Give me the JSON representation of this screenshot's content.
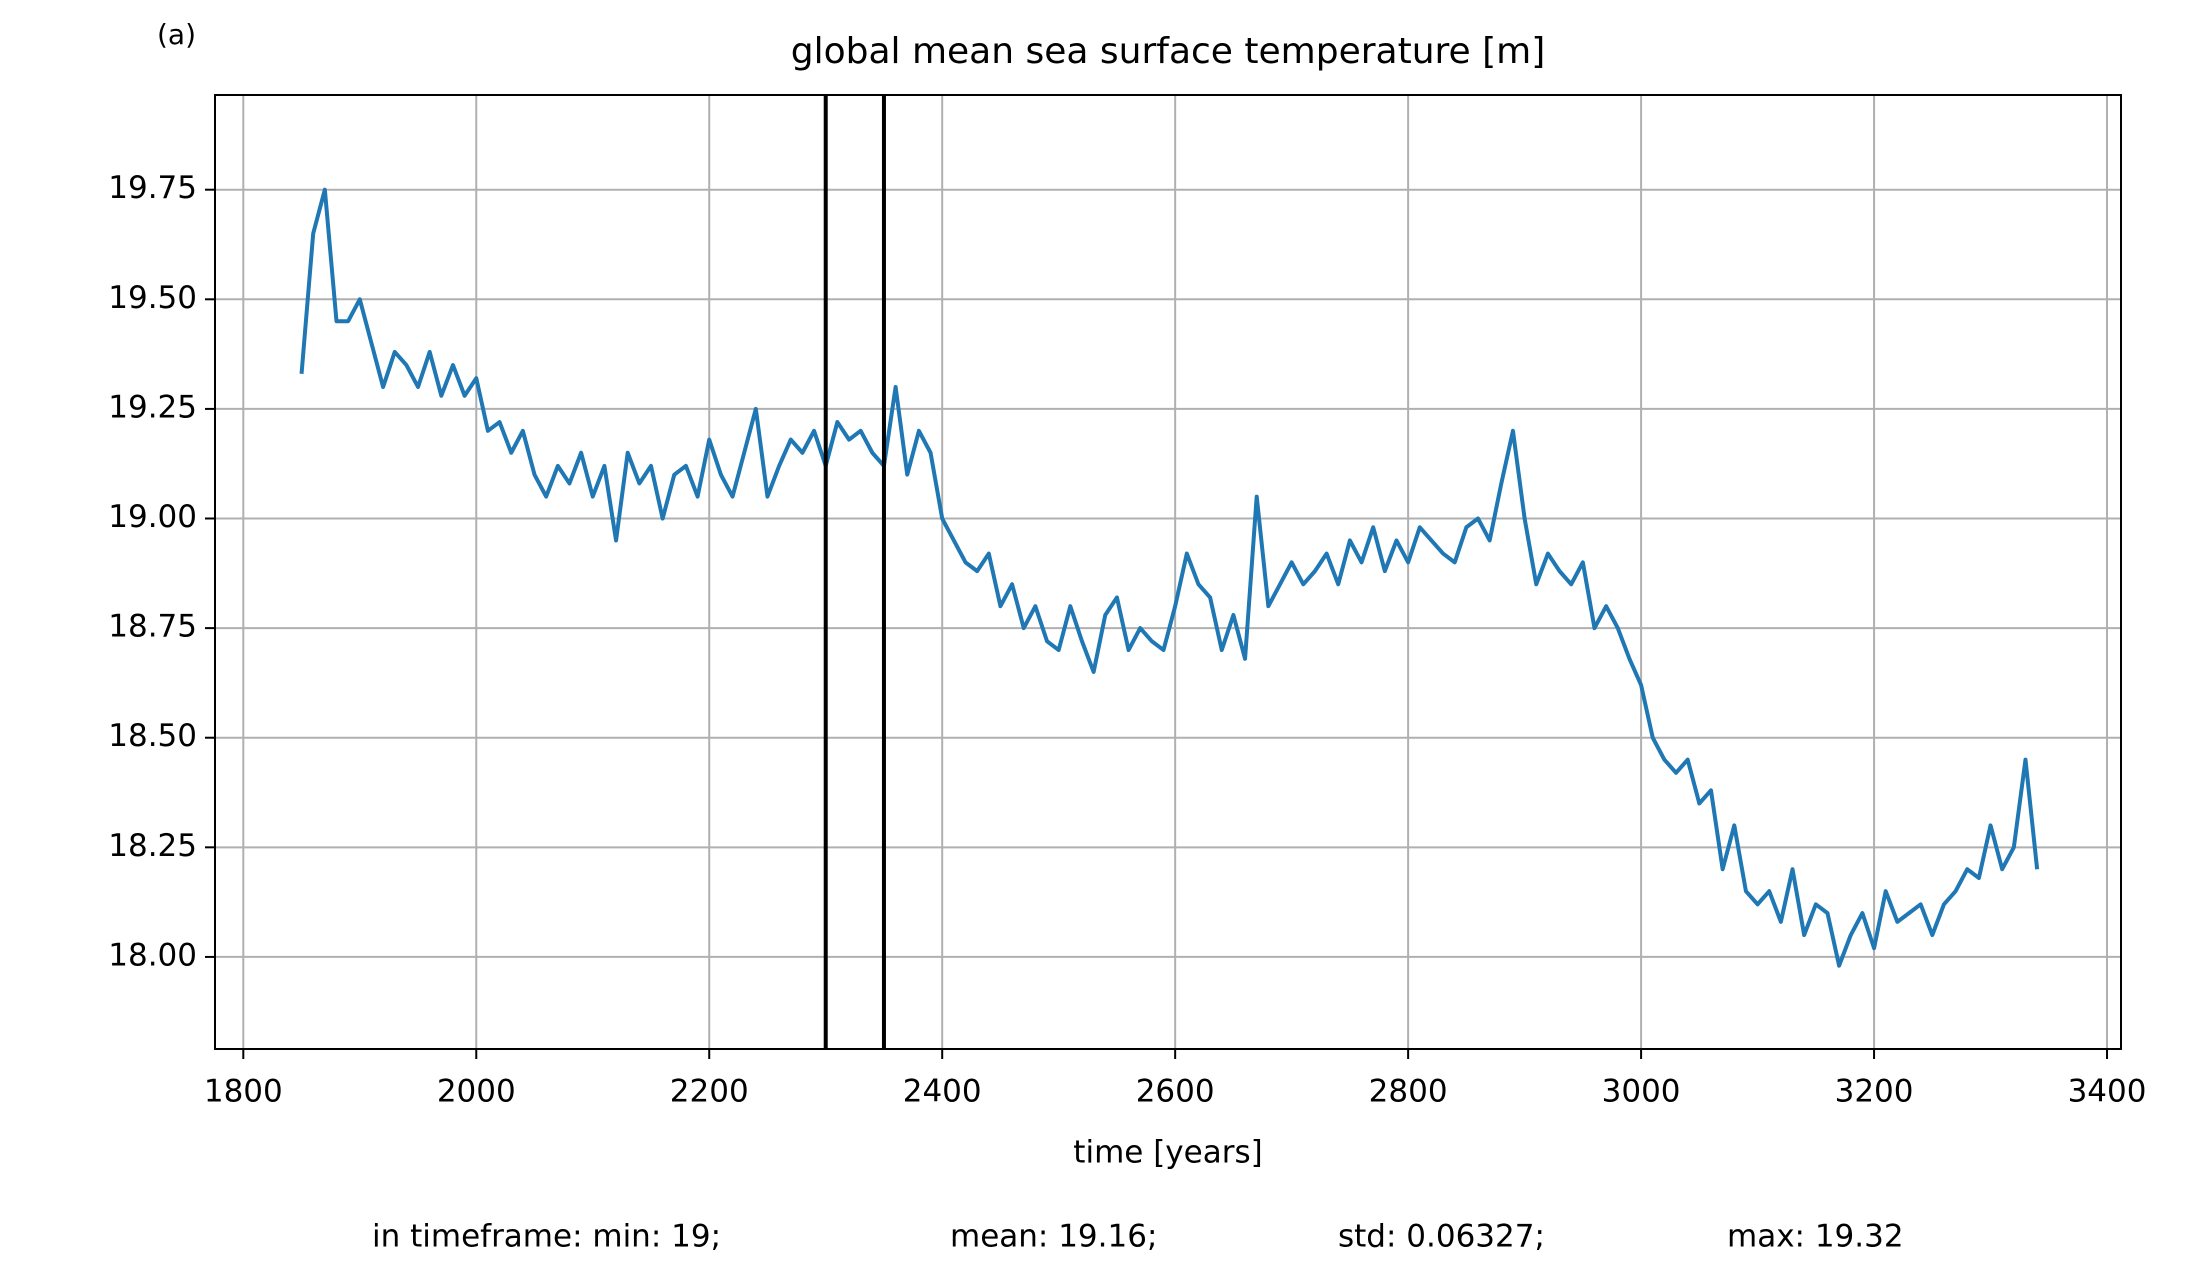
{
  "chart_data": {
    "type": "line",
    "panel_label": "(a)",
    "title": "global mean sea surface temperature [m]",
    "x_label": "time [years]",
    "annotations": [
      "in timeframe: min: 19;",
      "mean: 19.16;",
      "std: 0.06327;",
      "max: 19.32"
    ],
    "vlines": [
      2300,
      2350
    ],
    "xlim": [
      1775.7,
      3412
    ],
    "ylim": [
      17.79,
      19.966
    ],
    "xticks": [
      1800,
      2000,
      2200,
      2400,
      2600,
      2800,
      3000,
      3200,
      3400
    ],
    "yticks": [
      {
        "value": 18,
        "label": "18.00"
      },
      18.25,
      {
        "value": 18.5,
        "label": "18.50"
      },
      18.75,
      {
        "value": 19,
        "label": "19.00"
      },
      19.25,
      {
        "value": 19.5,
        "label": "19.50"
      },
      19.75
    ],
    "grid": true,
    "x": [
      1850,
      1860,
      1870,
      1880,
      1890,
      1900,
      1910,
      1920,
      1930,
      1940,
      1950,
      1960,
      1970,
      1980,
      1990,
      2000,
      2010,
      2020,
      2030,
      2040,
      2050,
      2060,
      2070,
      2080,
      2090,
      2100,
      2110,
      2120,
      2130,
      2140,
      2150,
      2160,
      2170,
      2180,
      2190,
      2200,
      2210,
      2220,
      2230,
      2240,
      2250,
      2260,
      2270,
      2280,
      2290,
      2300,
      2310,
      2320,
      2330,
      2340,
      2350,
      2360,
      2370,
      2380,
      2390,
      2400,
      2410,
      2420,
      2430,
      2440,
      2450,
      2460,
      2470,
      2480,
      2490,
      2500,
      2510,
      2520,
      2530,
      2540,
      2550,
      2560,
      2570,
      2580,
      2590,
      2600,
      2610,
      2620,
      2630,
      2640,
      2650,
      2660,
      2670,
      2680,
      2690,
      2700,
      2710,
      2720,
      2730,
      2740,
      2750,
      2760,
      2770,
      2780,
      2790,
      2800,
      2810,
      2820,
      2830,
      2840,
      2850,
      2860,
      2870,
      2880,
      2890,
      2900,
      2910,
      2920,
      2930,
      2940,
      2950,
      2960,
      2970,
      2980,
      2990,
      3000,
      3010,
      3020,
      3030,
      3040,
      3050,
      3060,
      3070,
      3080,
      3090,
      3100,
      3110,
      3120,
      3130,
      3140,
      3150,
      3160,
      3170,
      3180,
      3190,
      3200,
      3210,
      3220,
      3230,
      3240,
      3250,
      3260,
      3270,
      3280,
      3290,
      3300,
      3310,
      3320,
      3330,
      3340
    ],
    "series": [
      {
        "color": "#1f77b4",
        "values": [
          19.33,
          19.65,
          19.75,
          19.45,
          19.45,
          19.5,
          19.4,
          19.3,
          19.38,
          19.35,
          19.3,
          19.38,
          19.28,
          19.35,
          19.28,
          19.32,
          19.2,
          19.22,
          19.15,
          19.2,
          19.1,
          19.05,
          19.12,
          19.08,
          19.15,
          19.05,
          19.12,
          18.95,
          19.15,
          19.08,
          19.12,
          19.0,
          19.1,
          19.12,
          19.05,
          19.18,
          19.1,
          19.05,
          19.15,
          19.25,
          19.05,
          19.12,
          19.18,
          19.15,
          19.2,
          19.12,
          19.22,
          19.18,
          19.2,
          19.15,
          19.12,
          19.3,
          19.1,
          19.2,
          19.15,
          19.0,
          18.95,
          18.9,
          18.88,
          18.92,
          18.8,
          18.85,
          18.75,
          18.8,
          18.72,
          18.7,
          18.8,
          18.72,
          18.65,
          18.78,
          18.82,
          18.7,
          18.75,
          18.72,
          18.7,
          18.8,
          18.92,
          18.85,
          18.82,
          18.7,
          18.78,
          18.68,
          19.05,
          18.8,
          18.85,
          18.9,
          18.85,
          18.88,
          18.92,
          18.85,
          18.95,
          18.9,
          18.98,
          18.88,
          18.95,
          18.9,
          18.98,
          18.95,
          18.92,
          18.9,
          18.98,
          19.0,
          18.95,
          19.08,
          19.2,
          19.0,
          18.85,
          18.92,
          18.88,
          18.85,
          18.9,
          18.75,
          18.8,
          18.75,
          18.68,
          18.62,
          18.5,
          18.45,
          18.42,
          18.45,
          18.35,
          18.38,
          18.2,
          18.3,
          18.15,
          18.12,
          18.15,
          18.08,
          18.2,
          18.05,
          18.12,
          18.1,
          17.98,
          18.05,
          18.1,
          18.02,
          18.15,
          18.08,
          18.1,
          18.12,
          18.05,
          18.12,
          18.15,
          18.2,
          18.18,
          18.3,
          18.2,
          18.25,
          18.45,
          18.2
        ]
      }
    ]
  }
}
